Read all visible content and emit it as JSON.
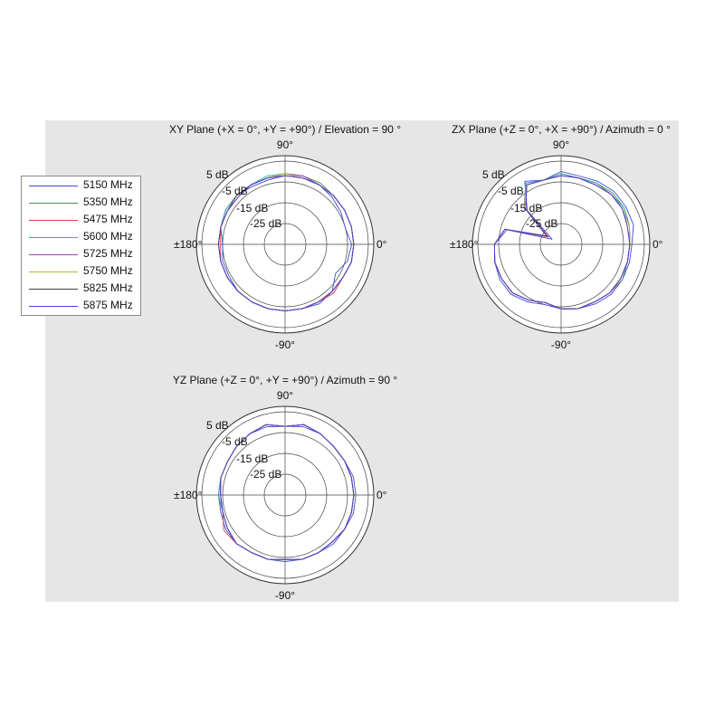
{
  "chart_data": [
    {
      "type": "polar-line",
      "title": "XY Plane (+X = 0°, +Y = +90°) / Elevation = 90 °",
      "angle_labels": {
        "top": "90°",
        "bottom": "-90°",
        "left": "±180°",
        "right": "0°"
      },
      "radial_tick_labels": [
        "5 dB",
        "-5 dB",
        "-15 dB",
        "-25 dB"
      ],
      "radial_range_db": [
        -35,
        5
      ],
      "angles_deg": [
        0,
        15,
        30,
        45,
        60,
        75,
        90,
        105,
        120,
        135,
        150,
        165,
        180,
        195,
        210,
        225,
        240,
        255,
        270,
        285,
        300,
        315,
        330,
        345
      ],
      "series": [
        {
          "name": "5150 MHz",
          "values_db": [
            -3,
            -5,
            -4,
            -3,
            -2,
            -2,
            -2,
            -3,
            -3,
            -2,
            -2,
            -3,
            -5,
            -4,
            -4,
            -3,
            -3,
            -3,
            -3,
            -3,
            -2,
            -3,
            -7,
            -4
          ]
        },
        {
          "name": "5350 MHz",
          "values_db": [
            -2,
            -2,
            -2,
            -2,
            -1,
            -1,
            -1,
            -2,
            -2,
            -2,
            -2,
            -3,
            -3,
            -3,
            -3,
            -3,
            -3,
            -3,
            -3,
            -3,
            -3,
            -2,
            -3,
            -2
          ]
        },
        {
          "name": "5475 MHz",
          "values_db": [
            -2,
            -2,
            -2,
            -2,
            -2,
            -1,
            -1,
            -2,
            -2,
            -2,
            -2,
            -3,
            -4,
            -3,
            -3,
            -3,
            -3,
            -3,
            -3,
            -3,
            -3,
            -2,
            -3,
            -2
          ]
        },
        {
          "name": "5600 MHz",
          "values_db": [
            -2,
            -2,
            -2,
            -2,
            -2,
            -1,
            -1,
            -1,
            -2,
            -2,
            -2,
            -3,
            -3,
            -3,
            -3,
            -3,
            -3,
            -3,
            -3,
            -3,
            -3,
            -3,
            -3,
            -2
          ]
        },
        {
          "name": "5725 MHz",
          "values_db": [
            -2,
            -2,
            -2,
            -2,
            -2,
            -1,
            -1,
            -2,
            -2,
            -3,
            -3,
            -3,
            -3,
            -3,
            -3,
            -3,
            -3,
            -3,
            -3,
            -3,
            -3,
            -3,
            -3,
            -2
          ]
        },
        {
          "name": "5750 MHz",
          "values_db": [
            -2,
            -2,
            -2,
            -2,
            -2,
            -2,
            -1,
            -2,
            -2,
            -2,
            -3,
            -3,
            -3,
            -3,
            -3,
            -3,
            -3,
            -3,
            -3,
            -3,
            -3,
            -3,
            -3,
            -2
          ]
        },
        {
          "name": "5825 MHz",
          "values_db": [
            -2,
            -2,
            -2,
            -2,
            -2,
            -2,
            -2,
            -2,
            -2,
            -2,
            -3,
            -3,
            -3,
            -3,
            -3,
            -3,
            -3,
            -3,
            -3,
            -3,
            -3,
            -3,
            -3,
            -2
          ]
        },
        {
          "name": "5875 MHz",
          "values_db": [
            -2,
            -2,
            -2,
            -2,
            -2,
            -2,
            -2,
            -2,
            -2,
            -3,
            -3,
            -3,
            -3,
            -3,
            -3,
            -3,
            -3,
            -3,
            -3,
            -3,
            -3,
            -3,
            -3,
            -2
          ]
        }
      ]
    },
    {
      "type": "polar-line",
      "title": "ZX Plane (+Z = 0°, +X = +90°) / Azimuth = 0 °",
      "angle_labels": {
        "top": "90°",
        "bottom": "-90°",
        "left": "±180°",
        "right": "0°"
      },
      "radial_tick_labels": [
        "5 dB",
        "-5 dB",
        "-15 dB",
        "-25 dB"
      ],
      "radial_range_db": [
        -35,
        5
      ],
      "angles_deg": [
        0,
        15,
        30,
        45,
        60,
        75,
        90,
        105,
        120,
        135,
        150,
        165,
        180,
        195,
        210,
        225,
        240,
        255,
        270,
        285,
        300,
        315,
        330,
        345
      ],
      "series": [
        {
          "name": "5150 MHz",
          "values_db": [
            -1,
            1,
            1,
            1,
            0,
            -1,
            0,
            -3,
            0,
            -12,
            -30,
            -8,
            -3,
            -2,
            -1,
            -1,
            -3,
            -5,
            -4,
            -3,
            -2,
            -1,
            -1,
            -1
          ]
        },
        {
          "name": "5350 MHz",
          "values_db": [
            -2,
            -1,
            0,
            0,
            -1,
            -2,
            -1,
            -3,
            -1,
            -10,
            -28,
            -7,
            -3,
            -2,
            -2,
            -2,
            -4,
            -6,
            -4,
            -3,
            -3,
            -2,
            -1,
            -2
          ]
        },
        {
          "name": "5475 MHz",
          "values_db": [
            -2,
            -1,
            0,
            -1,
            -1,
            -2,
            -1,
            -3,
            -1,
            -10,
            -28,
            -7,
            -3,
            -2,
            -2,
            -2,
            -4,
            -6,
            -4,
            -3,
            -3,
            -2,
            -2,
            -2
          ]
        },
        {
          "name": "5600 MHz",
          "values_db": [
            -2,
            -1,
            0,
            -1,
            -1,
            -2,
            -1,
            -3,
            -1,
            -10,
            -27,
            -7,
            -3,
            -2,
            -2,
            -2,
            -4,
            -6,
            -4,
            -3,
            -3,
            -2,
            -2,
            -2
          ]
        },
        {
          "name": "5725 MHz",
          "values_db": [
            -2,
            -1,
            -1,
            -1,
            -2,
            -2,
            -2,
            -3,
            -2,
            -10,
            -27,
            -7,
            -3,
            -2,
            -2,
            -2,
            -4,
            -6,
            -4,
            -3,
            -3,
            -2,
            -2,
            -2
          ]
        },
        {
          "name": "5750 MHz",
          "values_db": [
            -2,
            -1,
            -1,
            -1,
            -2,
            -2,
            -2,
            -3,
            -2,
            -10,
            -27,
            -7,
            -3,
            -2,
            -2,
            -2,
            -4,
            -6,
            -4,
            -3,
            -3,
            -2,
            -2,
            -2
          ]
        },
        {
          "name": "5825 MHz",
          "values_db": [
            -2,
            -2,
            -1,
            -1,
            -2,
            -2,
            -2,
            -3,
            -2,
            -11,
            -27,
            -7,
            -3,
            -2,
            -2,
            -2,
            -4,
            -6,
            -4,
            -3,
            -3,
            -2,
            -2,
            -2
          ]
        },
        {
          "name": "5875 MHz",
          "values_db": [
            -2,
            -2,
            -1,
            -1,
            -2,
            -2,
            -2,
            -3,
            -2,
            -11,
            -27,
            -7,
            -3,
            -2,
            -2,
            -2,
            -4,
            -6,
            -4,
            -3,
            -3,
            -2,
            -2,
            -2
          ]
        }
      ]
    },
    {
      "type": "polar-line",
      "title": "YZ Plane (+Z = 0°, +Y = +90°) / Azimuth = 90 °",
      "angle_labels": {
        "top": "90°",
        "bottom": "-90°",
        "left": "±180°",
        "right": "0°"
      },
      "radial_tick_labels": [
        "5 dB",
        "-5 dB",
        "-15 dB",
        "-25 dB"
      ],
      "radial_range_db": [
        -35,
        5
      ],
      "angles_deg": [
        0,
        15,
        30,
        45,
        60,
        75,
        90,
        105,
        120,
        135,
        150,
        165,
        180,
        195,
        210,
        225,
        240,
        255,
        270,
        285,
        300,
        315,
        330,
        345
      ],
      "series": [
        {
          "name": "5150 MHz",
          "values_db": [
            -1,
            -1,
            -2,
            -2,
            -1,
            -1,
            -2,
            -1,
            -1,
            -2,
            -3,
            -3,
            -3,
            -3,
            -2,
            -2,
            -3,
            -3,
            -3,
            -3,
            -3,
            -2,
            -2,
            -1
          ]
        },
        {
          "name": "5350 MHz",
          "values_db": [
            -2,
            -2,
            -2,
            -2,
            -1,
            0,
            -2,
            0,
            -1,
            -2,
            -3,
            -3,
            -3,
            -4,
            -3,
            -2,
            -3,
            -3,
            -4,
            -3,
            -3,
            -3,
            -2,
            -2
          ]
        },
        {
          "name": "5475 MHz",
          "values_db": [
            -2,
            -2,
            -2,
            -2,
            -1,
            0,
            -2,
            0,
            -1,
            -2,
            -3,
            -3,
            -3,
            -4,
            -1,
            -2,
            -3,
            -3,
            -4,
            -3,
            -3,
            -3,
            -2,
            -2
          ]
        },
        {
          "name": "5600 MHz",
          "values_db": [
            -2,
            -2,
            -2,
            -2,
            -1,
            0,
            -2,
            0,
            -1,
            -2,
            -3,
            -3,
            -3,
            -4,
            -3,
            -2,
            -3,
            -3,
            -4,
            -3,
            -3,
            -3,
            -2,
            -2
          ]
        },
        {
          "name": "5725 MHz",
          "values_db": [
            -2,
            -2,
            -2,
            -2,
            -1,
            0,
            -2,
            0,
            -1,
            -2,
            -3,
            -3,
            -4,
            -4,
            -3,
            -2,
            -3,
            -3,
            -4,
            -3,
            -3,
            -3,
            -2,
            -2
          ]
        },
        {
          "name": "5750 MHz",
          "values_db": [
            -2,
            -2,
            -2,
            -2,
            -1,
            0,
            -2,
            0,
            -1,
            -2,
            -3,
            -3,
            -4,
            -4,
            -3,
            -2,
            -3,
            -3,
            -4,
            -3,
            -3,
            -3,
            -2,
            -2
          ]
        },
        {
          "name": "5825 MHz",
          "values_db": [
            -2,
            -2,
            -2,
            -2,
            -1,
            0,
            -2,
            0,
            -1,
            -2,
            -3,
            -3,
            -4,
            -4,
            -3,
            -2,
            -3,
            -3,
            -4,
            -3,
            -3,
            -3,
            -2,
            -2
          ]
        },
        {
          "name": "5875 MHz",
          "values_db": [
            -2,
            -2,
            -2,
            -2,
            -1,
            0,
            -2,
            0,
            -1,
            -2,
            -3,
            -3,
            -4,
            -4,
            -3,
            -2,
            -3,
            -3,
            -4,
            -3,
            -3,
            -3,
            -2,
            -2
          ]
        }
      ]
    }
  ],
  "legend": {
    "placement": "left",
    "items": [
      {
        "label": "5150 MHz",
        "color": "#3b4bd8"
      },
      {
        "label": "5350 MHz",
        "color": "#4f8a4f"
      },
      {
        "label": "5475 MHz",
        "color": "#e04040"
      },
      {
        "label": "5600 MHz",
        "color": "#22b5b5"
      },
      {
        "label": "5725 MHz",
        "color": "#a040c0"
      },
      {
        "label": "5750 MHz",
        "color": "#b8b832"
      },
      {
        "label": "5825 MHz",
        "color": "#404040"
      },
      {
        "label": "5875 MHz",
        "color": "#5a3ad8"
      }
    ]
  }
}
